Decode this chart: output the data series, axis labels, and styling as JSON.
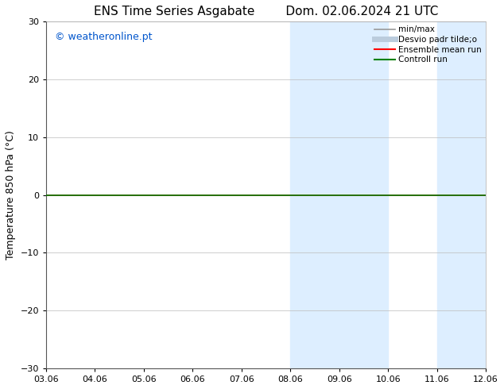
{
  "title": "ENS Time Series Asgabate        Dom. 02.06.2024 21 UTC",
  "ylabel": "Temperature 850 hPa (°C)",
  "xlabel_ticks": [
    "03.06",
    "04.06",
    "05.06",
    "06.06",
    "07.06",
    "08.06",
    "09.06",
    "10.06",
    "11.06",
    "12.06"
  ],
  "xlim": [
    0,
    9
  ],
  "ylim": [
    -30,
    30
  ],
  "yticks": [
    -30,
    -20,
    -10,
    0,
    10,
    20,
    30
  ],
  "bg_color": "#ffffff",
  "plot_bg_color": "#ffffff",
  "shaded_bands": [
    {
      "xstart": 5.0,
      "xend": 7.0,
      "color": "#ddeeff"
    },
    {
      "xstart": 8.0,
      "xend": 9.0,
      "color": "#ddeeff"
    }
  ],
  "flat_line_y": 0.0,
  "flat_line_color": "#008000",
  "ensemble_mean_color": "#ff0000",
  "watermark_text": "© weatheronline.pt",
  "watermark_color": "#0055cc",
  "legend_entries": [
    {
      "label": "min/max",
      "color": "#999999",
      "lw": 1.2
    },
    {
      "label": "Desvio padr tilde;o",
      "color": "#bbccdd",
      "lw": 5
    },
    {
      "label": "Ensemble mean run",
      "color": "#ff0000",
      "lw": 1.5
    },
    {
      "label": "Controll run",
      "color": "#008000",
      "lw": 1.5
    }
  ],
  "grid_color": "#bbbbbb",
  "title_fontsize": 11,
  "tick_fontsize": 8,
  "label_fontsize": 9,
  "watermark_fontsize": 9
}
